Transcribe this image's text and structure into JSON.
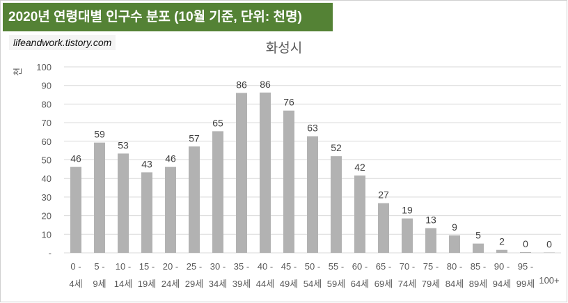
{
  "header": {
    "title": "2020년 연령대별 인구수 분포 (10월 기준, 단위: 천명)",
    "source": "lifeandwork.tistory.com"
  },
  "chart_data": {
    "type": "bar",
    "title": "화성시",
    "ylabel": "천",
    "ylim": [
      0,
      100
    ],
    "yticks": [
      "-",
      "10",
      "20",
      "30",
      "40",
      "50",
      "60",
      "70",
      "80",
      "90",
      "100"
    ],
    "categories": [
      {
        "top": "0 -",
        "bottom": "4세"
      },
      {
        "top": "5 -",
        "bottom": "9세"
      },
      {
        "top": "10 -",
        "bottom": "14세"
      },
      {
        "top": "15 -",
        "bottom": "19세"
      },
      {
        "top": "20 -",
        "bottom": "24세"
      },
      {
        "top": "25 -",
        "bottom": "29세"
      },
      {
        "top": "30 -",
        "bottom": "34세"
      },
      {
        "top": "35 -",
        "bottom": "39세"
      },
      {
        "top": "40 -",
        "bottom": "44세"
      },
      {
        "top": "45 -",
        "bottom": "49세"
      },
      {
        "top": "50 -",
        "bottom": "54세"
      },
      {
        "top": "55 -",
        "bottom": "59세"
      },
      {
        "top": "60 -",
        "bottom": "64세"
      },
      {
        "top": "65 -",
        "bottom": "69세"
      },
      {
        "top": "70 -",
        "bottom": "74세"
      },
      {
        "top": "75 -",
        "bottom": "79세"
      },
      {
        "top": "80 -",
        "bottom": "84세"
      },
      {
        "top": "85 -",
        "bottom": "89세"
      },
      {
        "top": "90 -",
        "bottom": "94세"
      },
      {
        "top": "95 -",
        "bottom": "99세"
      },
      {
        "top": "",
        "bottom": "100+"
      }
    ],
    "values": [
      46.2,
      59.3,
      53.4,
      43.3,
      46.2,
      57.2,
      65.4,
      86.0,
      86.2,
      76.5,
      62.7,
      52.0,
      41.6,
      26.7,
      18.5,
      13.3,
      9.4,
      5.0,
      1.6,
      0.4,
      0.2
    ],
    "labels": [
      "46",
      "59",
      "53",
      "43",
      "46",
      "57",
      "65",
      "86",
      "86",
      "76",
      "63",
      "52",
      "42",
      "27",
      "19",
      "13",
      "9",
      "5",
      "2",
      "0",
      "0"
    ],
    "grid": true,
    "colors": {
      "bar": "#b2b2b2",
      "grid": "#d9d9d9",
      "text": "#595959",
      "banner": "#548235"
    }
  }
}
